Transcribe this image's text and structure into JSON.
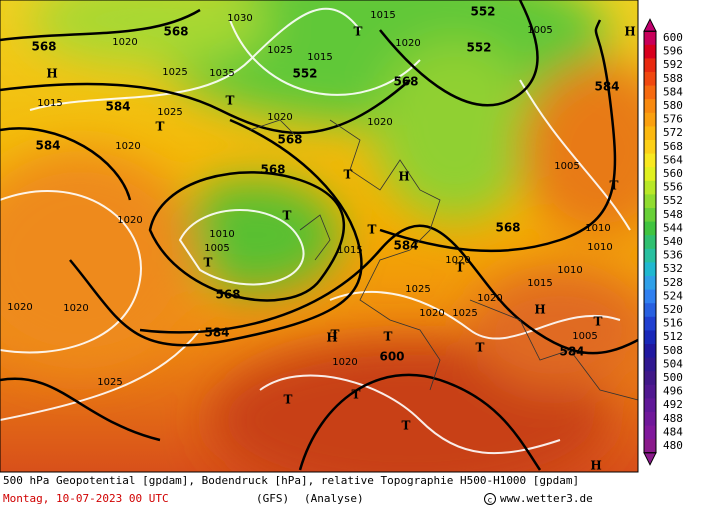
{
  "map": {
    "contour_labels": [
      552,
      552,
      552,
      568,
      568,
      568,
      568,
      568,
      568,
      568,
      584,
      584,
      584,
      584,
      584,
      584,
      600
    ],
    "pressure_labels": [
      1015,
      1020,
      1025,
      1030,
      1035,
      1010,
      1005,
      1020,
      1025,
      1020,
      1015,
      1020,
      1025,
      1020,
      1005,
      1010,
      1020,
      1025,
      1020,
      1015,
      1020,
      1025,
      1020,
      1015,
      1020,
      1025,
      1010,
      1005,
      1020,
      1015,
      1010,
      1005,
      1020
    ],
    "markers": [
      "T",
      "T",
      "T",
      "T",
      "T",
      "T",
      "T",
      "T",
      "T",
      "T",
      "T",
      "T",
      "T",
      "T",
      "H",
      "H",
      "H",
      "H",
      "H",
      "H",
      "T",
      "T"
    ]
  },
  "colorbar": {
    "labels": [
      600,
      596,
      592,
      588,
      584,
      580,
      576,
      572,
      568,
      564,
      560,
      556,
      552,
      548,
      544,
      540,
      536,
      532,
      528,
      524,
      520,
      516,
      512,
      508,
      504,
      500,
      496,
      492,
      488,
      484,
      480
    ]
  },
  "footer": {
    "description": "500 hPa Geopotential [gpdam], Bodendruck [hPa], relative Topographie H500-H1000 [gpdam]",
    "date": "Montag, 10-07-2023  00 UTC",
    "model": "(GFS)",
    "analysis": "(Analyse)",
    "site": "www.wetter3.de"
  }
}
